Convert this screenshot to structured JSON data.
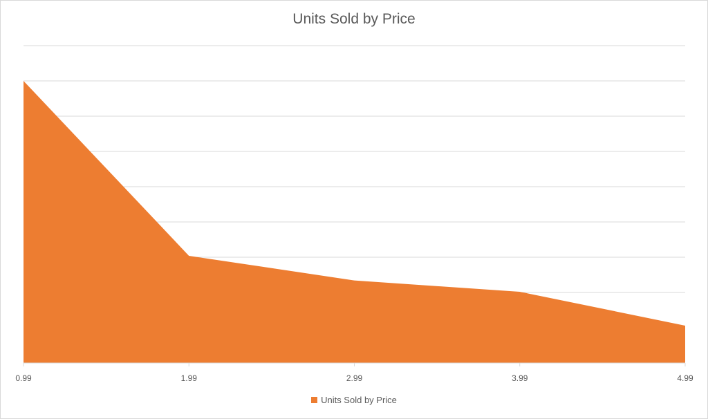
{
  "chart_data": {
    "type": "area",
    "title": "Units Sold by Price",
    "x": [
      "0.99",
      "1.99",
      "2.99",
      "3.99",
      "4.99"
    ],
    "series": [
      {
        "name": "Units Sold by Price",
        "values": [
          400,
          152,
          117,
          101,
          53
        ],
        "color": "#ed7d31"
      }
    ],
    "ylim": [
      0,
      450
    ],
    "y_gridline_step": 50,
    "y_tick_labels_shown": false,
    "grid": true,
    "legend": "bottom"
  }
}
